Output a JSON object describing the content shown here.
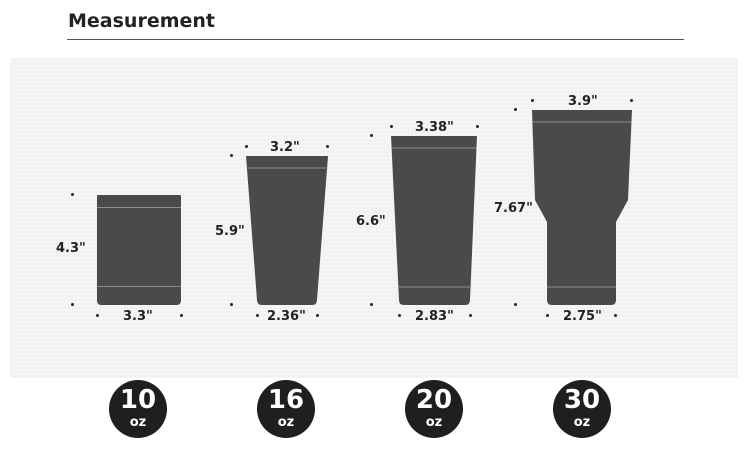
{
  "header": {
    "title": "Measurement"
  },
  "colors": {
    "cup": "#4a4a4a",
    "badge": "#1f1f1f",
    "background_panel": "#f5f5f5"
  },
  "tumblers": [
    {
      "size": "10",
      "unit": "oz",
      "height": "4.3\"",
      "top_width": "",
      "bottom_width": "3.3\""
    },
    {
      "size": "16",
      "unit": "oz",
      "height": "5.9\"",
      "top_width": "3.2\"",
      "bottom_width": "2.36\""
    },
    {
      "size": "20",
      "unit": "oz",
      "height": "6.6\"",
      "top_width": "3.38\"",
      "bottom_width": "2.83\""
    },
    {
      "size": "30",
      "unit": "oz",
      "height": "7.67\"",
      "top_width": "3.9\"",
      "bottom_width": "2.75\""
    }
  ]
}
